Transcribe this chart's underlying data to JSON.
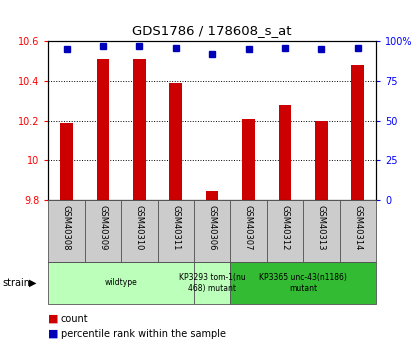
{
  "title": "GDS1786 / 178608_s_at",
  "samples": [
    "GSM40308",
    "GSM40309",
    "GSM40310",
    "GSM40311",
    "GSM40306",
    "GSM40307",
    "GSM40312",
    "GSM40313",
    "GSM40314"
  ],
  "counts": [
    10.19,
    10.51,
    10.51,
    10.39,
    9.845,
    10.21,
    10.28,
    10.2,
    10.48
  ],
  "percentiles": [
    95,
    97,
    97,
    96,
    92,
    95,
    96,
    95,
    96
  ],
  "ylim": [
    9.8,
    10.6
  ],
  "yticks": [
    9.8,
    10.0,
    10.2,
    10.4,
    10.6
  ],
  "ytick_labels": [
    "9.8",
    "10",
    "10.2",
    "10.4",
    "10.6"
  ],
  "right_yticks": [
    0,
    25,
    50,
    75,
    100
  ],
  "right_ytick_labels": [
    "0",
    "25",
    "50",
    "75",
    "100%"
  ],
  "bar_color": "#cc0000",
  "dot_color": "#0000bb",
  "strain_groups": [
    {
      "label": "wildtype",
      "start": 0,
      "end": 4,
      "color": "#bbffbb"
    },
    {
      "label": "KP3293 tom-1(nu\n468) mutant",
      "start": 4,
      "end": 5,
      "color": "#bbffbb"
    },
    {
      "label": "KP3365 unc-43(n1186)\nmutant",
      "start": 5,
      "end": 9,
      "color": "#33bb33"
    }
  ],
  "legend_count_color": "#cc0000",
  "legend_pct_color": "#0000bb",
  "bar_width": 0.35
}
